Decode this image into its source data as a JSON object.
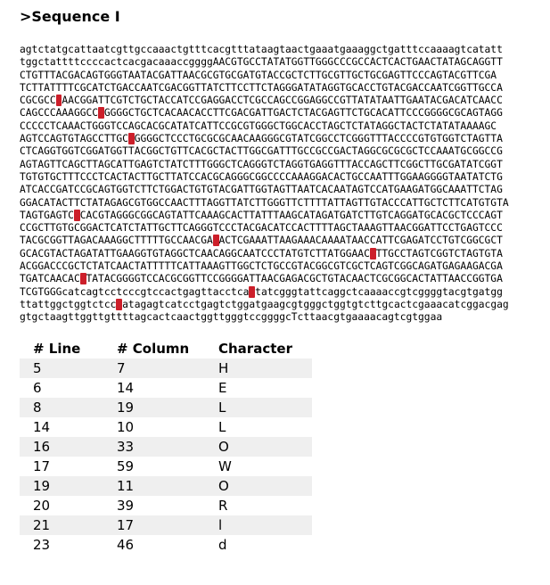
{
  "title": ">Sequence I",
  "sequence_lines": [
    "agtctatgcattaatcgttgccaaactgtttcacgtttataagtaactgaaatgaaaggctgatttccaaaagtcatatt",
    "tggctattttccccactcacgacaaaccggggAACGTGCCTATATGGTTGGGCCCGCCACTCACTGAACTATAGCAGGTT",
    "CTGTTTACGACAGTGGGTAATACGATTAACGCGTGCGATGTACCGCTCTTGCGTTGCTGCGAGTTCCCAGTACGTTCGA",
    "TCTTATTTTCGCATCTGACCAATCGACGGTTATCTTCCTTCTAGGGATATAGGTGCACCTGTACGACCAATCGGTTGCCA",
    "CGCGCCGAACGGATTCGTCTGCTACCATCCGAGGACCTCGCCAGCCGGAGGCCGTTATATAATTGAATACGACATCAACC",
    "CAGCCCAAAGGCCGGGGGCTGCTCACAACACCTTCGACGATTGACTCTACGAGTTCTGCACATTCCCGGGGCGCAGTAGG",
    "CCCCCTCAAACTGGGTCCAGCACGCATATCATTCCGCGTGGGCTGGCACCTAGCTCTATAGGCTACTCTATATAAAAGC",
    "AGTCCAGTGTAGCCTTGCAGGGGCTCCCTGCGCGCAACAAGGGCGTATCGGCCTCGGGTTTACCCCGTGTGGTCTAGTTA",
    "CTCAGGTGGTCGGATGGTTACGGCTGTTCACGCTACTTGGCGATTTGCCGCCGACTAGGCGCGCGCTCCAAATGCGGCCG",
    "AGTAGTTCAGCTTAGCATTGAGTCTATCTTTGGGCTCAGGGTCTAGGTGAGGTTTACCAGCTTCGGCTTGCGATATCGGT",
    "TGTGTGCTTTCCCTCACTACTTGCTTATCCACGCAGGGCGGCCCCAAAGGACACTGCCAATTTGGAAGGGGTAATATCTG",
    "ATCACCGATCCGCAGTGGTCTTCTGGACTGTGTACGATTGGTAGTTAATCACAATAGTCCATGAAGATGGCAAATTCTAG",
    "GGACATACTTCTATAGAGCGTGGCCAACTTTAGGTTATCTTGGGTTCTTTTATTAGTTGTACCCATTGCTCTTCATGTGTA",
    "TAGTGAGTCGCACGTAGGGCGGCAGTATTCAAAGCACTTATTTAAGCATAGATGATCTTGTCAGGATGCACGCTCCCAGT",
    "CCGCTTGTGCGGACTCATCTATTGCTTCAGGGTCCCTACGACATCCACTTTTAGCTAAAGTTAACGGATTCCTGAGTCCC",
    "TACGCGGTTAGACAAAGGCTTTTTGCCAACGATACTCGAAATTAAGAAACAAAATAACCATTCGAGATCCTGTCGGCGCT",
    "GCACGTACTAGATATTGAAGGTGTAGGCTCAACAGGCAATCCCTATGTCTTATGGAACCTTGCCTAGTCGGTCTAGTGTA",
    "ACGGACCCGCTCTATCAACTATTTTTCATTAAAGTTGGCTCTGCCGTACGGCGTCGCTCAGTCGGCAGATGAGAAGACGA",
    "TGATCAACACATATACGGGGTCCACGCGGTTCCGGGGATTAACGAGACGCTGTACAACTCGCGGCACTATTAACCGGTGA",
    "TCGTGGGcatcagtcctcccgtccactgagttacctcagtatcgggtattcaggctcaaaaccgtcggggtacgtgatgg",
    "ttattggctggtctcccatagagtcatcctgagtctggatgaagcgtgggctggtgtcttgcactcgaaacatcggacgag",
    "gtgctaagttggttgttttagcactcaactggttgggtccggggcTcttaacgtgaaaacagtcgtggaa"
  ],
  "highlights": [
    {
      "line": 4,
      "col": 7
    },
    {
      "line": 5,
      "col": 14
    },
    {
      "line": 7,
      "col": 19
    },
    {
      "line": 13,
      "col": 10
    },
    {
      "line": 15,
      "col": 33
    },
    {
      "line": 16,
      "col": 59
    },
    {
      "line": 18,
      "col": 11
    },
    {
      "line": 19,
      "col": 39
    },
    {
      "line": 20,
      "col": 17
    },
    {
      "line": 22,
      "col": 46
    }
  ],
  "table": {
    "headers": [
      "# Line",
      "# Column",
      "Character"
    ],
    "rows": [
      [
        "5",
        "7",
        "H"
      ],
      [
        "6",
        "14",
        "E"
      ],
      [
        "8",
        "19",
        "L"
      ],
      [
        "14",
        "10",
        "L"
      ],
      [
        "16",
        "33",
        "O"
      ],
      [
        "17",
        "59",
        "W"
      ],
      [
        "19",
        "11",
        "O"
      ],
      [
        "20",
        "39",
        "R"
      ],
      [
        "21",
        "17",
        "l"
      ],
      [
        "23",
        "46",
        "d"
      ]
    ]
  },
  "colors": {
    "highlight": "#cc1f2a",
    "row_stripe": "#efefef"
  }
}
